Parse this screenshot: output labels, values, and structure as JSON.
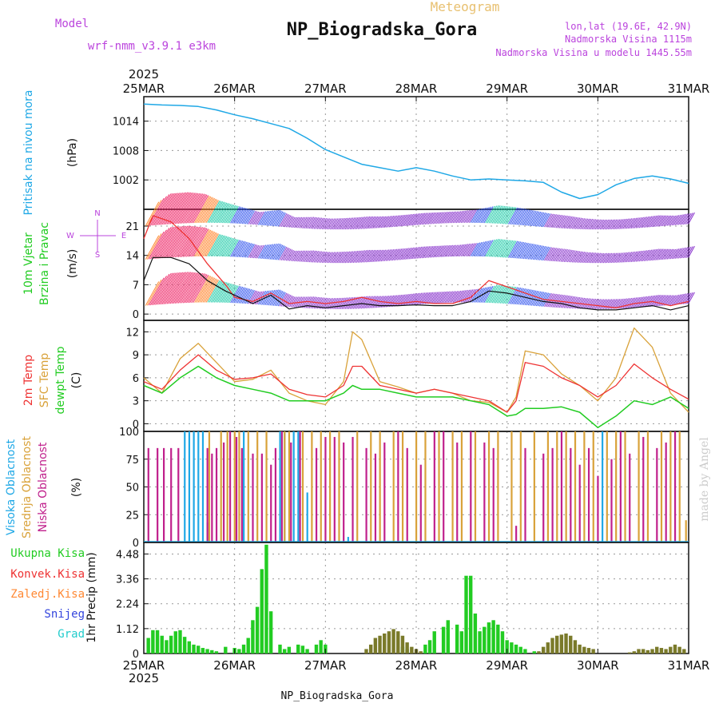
{
  "header": {
    "meteogram": "Meteogram",
    "title": "NP_Biogradska_Gora",
    "model_label": "Model",
    "model_name": "wrf-nmm_v3.9.1 e3km",
    "lonlat": "lon,lat (19.6E, 42.9N)",
    "altitude": "Nadmorska Visina 1115m",
    "model_altitude": "Nadmorska Visina u modelu 1445.55m",
    "year": "2025",
    "footer_title": "NP_Biogradska_Gora",
    "watermark": "made by Angel"
  },
  "colors": {
    "pressure": "#1fa8e6",
    "wind": "#22cc22",
    "temp2m": "#ee3333",
    "sfc": "#d9a23a",
    "dew": "#22cc22",
    "high_cloud": "#1fa8e6",
    "mid_cloud": "#d9a23a",
    "low_cloud": "#c0208c",
    "total_precip": "#22cc22",
    "conv_precip": "#ee3333",
    "frz_precip": "#ff8833",
    "snow": "#3344dd",
    "hail": "#22cccc",
    "label_purple": "#bb44dd"
  },
  "chart_data": [
    {
      "type": "line",
      "name": "pressure",
      "ylabel_main": "Pritisak na nivou mora",
      "ylabel_unit": "(hPa)",
      "categories": [
        "25MAR",
        "26MAR",
        "27MAR",
        "28MAR",
        "29MAR",
        "30MAR",
        "31MAR"
      ],
      "xlim": [
        0,
        6
      ],
      "ylim": [
        996,
        1019
      ],
      "yticks": [
        1002,
        1008,
        1014
      ],
      "series": [
        {
          "name": "MSLP",
          "x": [
            0,
            0.2,
            0.4,
            0.6,
            0.8,
            1.0,
            1.2,
            1.4,
            1.6,
            1.8,
            2.0,
            2.2,
            2.4,
            2.6,
            2.8,
            3.0,
            3.2,
            3.4,
            3.6,
            3.8,
            4.0,
            4.2,
            4.4,
            4.6,
            4.8,
            5.0,
            5.2,
            5.4,
            5.6,
            5.8,
            6.0
          ],
          "values": [
            1017.5,
            1017.3,
            1017.2,
            1017.0,
            1016.3,
            1015.3,
            1014.5,
            1013.5,
            1012.5,
            1010.5,
            1008.2,
            1006.7,
            1005.2,
            1004.5,
            1003.8,
            1004.5,
            1003.8,
            1002.8,
            1002.0,
            1002.2,
            1002.0,
            1001.8,
            1001.5,
            999.5,
            998.2,
            999.0,
            1001.0,
            1002.3,
            1002.8,
            1002.2,
            1001.3
          ]
        }
      ]
    },
    {
      "type": "line",
      "name": "wind",
      "ylabel_main": "10m Vjetar",
      "ylabel_sub": "Brzina i Pravac",
      "ylabel_unit": "(m/s)",
      "compass": {
        "n": "N",
        "w": "W",
        "e": "E",
        "s": "S"
      },
      "xlim": [
        0,
        6
      ],
      "ylim": [
        -1.5,
        25
      ],
      "yticks": [
        0,
        7,
        14,
        21
      ],
      "series": [
        {
          "name": "speed",
          "x": [
            0,
            0.1,
            0.3,
            0.5,
            0.7,
            0.9,
            1.0,
            1.2,
            1.4,
            1.6,
            1.8,
            2.0,
            2.2,
            2.4,
            2.6,
            2.8,
            3.0,
            3.2,
            3.4,
            3.6,
            3.8,
            4.0,
            4.2,
            4.4,
            4.6,
            4.8,
            5.0,
            5.2,
            5.4,
            5.6,
            5.8,
            6.0
          ],
          "values": [
            8,
            13.5,
            13.5,
            12,
            8,
            5.5,
            4.5,
            2.5,
            4.5,
            1.2,
            2,
            1.5,
            2,
            2.5,
            2,
            2,
            2.2,
            2,
            2,
            3,
            5.5,
            5,
            4,
            3,
            2.5,
            1.5,
            1,
            1,
            1.5,
            2,
            1,
            2
          ]
        },
        {
          "name": "gust",
          "x": [
            0,
            0.1,
            0.3,
            0.5,
            0.7,
            0.9,
            1.0,
            1.2,
            1.4,
            1.6,
            1.8,
            2.0,
            2.2,
            2.4,
            2.6,
            2.8,
            3.0,
            3.2,
            3.4,
            3.6,
            3.8,
            4.0,
            4.2,
            4.4,
            4.6,
            4.8,
            5.0,
            5.2,
            5.4,
            5.6,
            5.8,
            6.0
          ],
          "values": [
            18,
            23.5,
            22,
            18,
            12,
            7,
            4,
            3,
            5,
            2.5,
            3,
            2.5,
            3,
            4,
            3,
            2.5,
            3,
            2.5,
            2.5,
            4,
            8,
            6.5,
            5,
            3.5,
            3,
            2.5,
            2,
            1.5,
            2.5,
            3,
            2,
            3
          ]
        }
      ]
    },
    {
      "type": "line",
      "name": "temperature",
      "ylabel_a": "2m Temp",
      "ylabel_b": "SFC Temp",
      "ylabel_c": "dewpt Temp",
      "ylabel_unit": "(C)",
      "xlim": [
        0,
        6
      ],
      "ylim": [
        -1,
        13.5
      ],
      "yticks": [
        0,
        3,
        6,
        9,
        12
      ],
      "series": [
        {
          "name": "2m Temp",
          "x": [
            0,
            0.2,
            0.4,
            0.6,
            0.8,
            1.0,
            1.2,
            1.4,
            1.6,
            1.8,
            2.0,
            2.2,
            2.3,
            2.4,
            2.6,
            2.8,
            3.0,
            3.2,
            3.4,
            3.6,
            3.8,
            4.0,
            4.1,
            4.2,
            4.4,
            4.6,
            4.8,
            5.0,
            5.2,
            5.4,
            5.6,
            5.8,
            6.0
          ],
          "values": [
            5.5,
            4.5,
            7,
            9,
            7,
            5.8,
            6,
            6.5,
            4.5,
            3.8,
            3.5,
            5,
            7.5,
            7.5,
            5,
            4.5,
            4,
            4.5,
            4,
            3.5,
            3,
            1.5,
            3,
            8,
            7.5,
            6,
            5,
            3.5,
            5,
            7.8,
            6,
            4.5,
            3.2
          ]
        },
        {
          "name": "SFC Temp",
          "x": [
            0,
            0.2,
            0.4,
            0.6,
            0.8,
            1.0,
            1.2,
            1.4,
            1.6,
            1.8,
            2.0,
            2.2,
            2.3,
            2.4,
            2.6,
            2.8,
            3.0,
            3.2,
            3.4,
            3.6,
            3.8,
            4.0,
            4.1,
            4.2,
            4.4,
            4.6,
            4.8,
            5.0,
            5.2,
            5.4,
            5.6,
            5.8,
            6.0
          ],
          "values": [
            6,
            4,
            8.5,
            10.5,
            8,
            5.5,
            5.8,
            7,
            4,
            3,
            2.5,
            5.5,
            12,
            11,
            5.5,
            4.8,
            4,
            4.5,
            4,
            3,
            2.8,
            1.5,
            3.5,
            9.5,
            9,
            6.5,
            5,
            3,
            6,
            12.5,
            10,
            4,
            1.5
          ]
        },
        {
          "name": "dewpt Temp",
          "x": [
            0,
            0.2,
            0.4,
            0.6,
            0.8,
            1.0,
            1.2,
            1.4,
            1.6,
            1.8,
            2.0,
            2.2,
            2.3,
            2.4,
            2.6,
            2.8,
            3.0,
            3.2,
            3.4,
            3.6,
            3.8,
            4.0,
            4.1,
            4.2,
            4.4,
            4.6,
            4.8,
            5.0,
            5.2,
            5.4,
            5.6,
            5.8,
            6.0
          ],
          "values": [
            5,
            4,
            6,
            7.5,
            6,
            5,
            4.5,
            4,
            3,
            3,
            3,
            4,
            5,
            4.5,
            4.5,
            4,
            3.5,
            3.5,
            3.5,
            3,
            2.5,
            1,
            1.2,
            2,
            2,
            2.2,
            1.5,
            -0.5,
            1,
            3,
            2.5,
            3.5,
            2
          ]
        }
      ]
    },
    {
      "type": "bar",
      "name": "clouds",
      "ylabel_a": "Visoka Oblacnost",
      "ylabel_b": "Srednja Oblacnost",
      "ylabel_c": "Niska Oblacnost",
      "ylabel_unit": "(%)",
      "xlim": [
        0,
        6
      ],
      "ylim": [
        0,
        100
      ],
      "yticks": [
        0,
        25,
        50,
        75,
        100
      ],
      "series": [
        {
          "name": "Visoka",
          "x": [
            0.45,
            0.5,
            0.55,
            0.6,
            0.65,
            0.7,
            1.1,
            1.5,
            1.55,
            1.65,
            1.7,
            1.8,
            2.25,
            5.05
          ],
          "values": [
            100,
            100,
            100,
            100,
            100,
            18,
            100,
            100,
            100,
            100,
            100,
            45,
            5,
            100
          ]
        },
        {
          "name": "Srednja",
          "x": [
            0.72,
            0.85,
            0.92,
            1.0,
            1.05,
            1.15,
            1.25,
            1.35,
            1.55,
            1.6,
            1.75,
            1.85,
            1.95,
            2.05,
            2.15,
            2.35,
            2.5,
            2.6,
            2.75,
            2.85,
            3.0,
            3.1,
            3.25,
            3.4,
            3.5,
            3.65,
            3.8,
            3.9,
            4.05,
            4.15,
            4.3,
            4.45,
            4.55,
            4.65,
            4.75,
            4.85,
            4.95,
            5.1,
            5.2,
            5.3,
            5.45,
            5.55,
            5.7,
            5.8,
            5.9,
            5.97
          ],
          "values": [
            100,
            100,
            100,
            100,
            100,
            100,
            100,
            100,
            100,
            100,
            100,
            100,
            100,
            100,
            100,
            100,
            100,
            100,
            100,
            100,
            100,
            100,
            100,
            100,
            100,
            100,
            100,
            100,
            100,
            100,
            100,
            100,
            100,
            100,
            100,
            100,
            100,
            100,
            100,
            100,
            100,
            100,
            100,
            100,
            100,
            20
          ]
        },
        {
          "name": "Niska",
          "x": [
            0.05,
            0.15,
            0.22,
            0.3,
            0.38,
            0.7,
            0.75,
            0.8,
            0.88,
            0.95,
            1.02,
            1.08,
            1.2,
            1.3,
            1.4,
            1.45,
            1.52,
            1.62,
            1.72,
            1.9,
            2.0,
            2.1,
            2.2,
            2.3,
            2.45,
            2.55,
            2.65,
            2.8,
            2.9,
            3.05,
            3.2,
            3.3,
            3.45,
            3.6,
            3.75,
            3.85,
            4.1,
            4.2,
            4.4,
            4.5,
            4.6,
            4.7,
            4.8,
            4.9,
            5.0,
            5.15,
            5.25,
            5.35,
            5.5,
            5.65,
            5.75,
            5.85
          ],
          "values": [
            85,
            85,
            85,
            85,
            85,
            85,
            80,
            85,
            90,
            100,
            95,
            85,
            80,
            80,
            70,
            85,
            100,
            90,
            100,
            85,
            95,
            95,
            90,
            95,
            85,
            80,
            90,
            100,
            85,
            70,
            100,
            100,
            90,
            100,
            90,
            85,
            15,
            85,
            80,
            85,
            100,
            85,
            70,
            85,
            60,
            75,
            100,
            80,
            95,
            85,
            90,
            100
          ]
        }
      ]
    },
    {
      "type": "bar",
      "name": "precipitation",
      "legend": [
        "Ukupna Kisa",
        "Konvek.Kisa",
        "Zaledj.Kisa",
        "Snijeg",
        "Grad"
      ],
      "ylabel": "1hr Precip (mm)",
      "xlim": [
        0,
        6
      ],
      "ylim": [
        0,
        5.0
      ],
      "yticks": [
        0,
        1.12,
        2.24,
        3.36,
        4.48
      ],
      "series": [
        {
          "name": "Ukupna Kisa",
          "x": [
            0.05,
            0.1,
            0.15,
            0.2,
            0.25,
            0.3,
            0.35,
            0.4,
            0.45,
            0.5,
            0.55,
            0.6,
            0.65,
            0.7,
            0.75,
            0.8,
            0.9,
            1.0,
            1.05,
            1.1,
            1.15,
            1.2,
            1.25,
            1.3,
            1.35,
            1.4,
            1.5,
            1.55,
            1.6,
            1.7,
            1.75,
            1.8,
            1.9,
            1.95,
            2.0,
            2.85,
            2.9,
            3.1,
            3.15,
            3.2,
            3.3,
            3.35,
            3.45,
            3.5,
            3.55,
            3.6,
            3.65,
            3.7,
            3.75,
            3.8,
            3.85,
            3.9,
            3.95,
            4.0,
            4.05,
            4.1,
            4.15,
            4.2,
            4.3
          ],
          "values": [
            0.7,
            1.05,
            1.05,
            0.8,
            0.6,
            0.8,
            1.0,
            1.05,
            0.75,
            0.55,
            0.4,
            0.35,
            0.25,
            0.2,
            0.15,
            0.1,
            0.3,
            0.25,
            0.2,
            0.4,
            0.7,
            1.5,
            2.1,
            3.8,
            4.9,
            1.9,
            0.4,
            0.2,
            0.3,
            0.4,
            0.35,
            0.2,
            0.4,
            0.6,
            0.4,
            0.3,
            0.2,
            0.4,
            0.6,
            1.0,
            1.2,
            1.5,
            1.3,
            1.0,
            3.5,
            3.5,
            1.8,
            1.0,
            1.2,
            1.4,
            1.5,
            1.3,
            1.0,
            0.6,
            0.5,
            0.4,
            0.3,
            0.2,
            0.1
          ]
        },
        {
          "name": "Konvek.Kisa",
          "x": [
            2.45,
            2.5,
            2.55,
            2.6,
            2.65,
            2.7,
            2.75,
            2.8,
            2.85,
            2.9,
            2.95,
            3.0,
            3.05,
            4.35,
            4.4,
            4.45,
            4.5,
            4.55,
            4.6,
            4.65,
            4.7,
            4.75,
            4.8,
            4.85,
            4.9,
            4.95,
            5.35,
            5.4,
            5.45,
            5.5,
            5.55,
            5.6,
            5.65,
            5.7,
            5.75,
            5.8,
            5.85,
            5.9,
            5.95
          ],
          "values": [
            0.2,
            0.4,
            0.7,
            0.8,
            0.9,
            1.0,
            1.1,
            1.0,
            0.8,
            0.5,
            0.3,
            0.2,
            0.1,
            0.1,
            0.3,
            0.5,
            0.7,
            0.8,
            0.85,
            0.9,
            0.8,
            0.6,
            0.4,
            0.3,
            0.25,
            0.2,
            0.05,
            0.1,
            0.2,
            0.2,
            0.15,
            0.2,
            0.3,
            0.25,
            0.2,
            0.3,
            0.4,
            0.3,
            0.2
          ]
        }
      ]
    }
  ]
}
